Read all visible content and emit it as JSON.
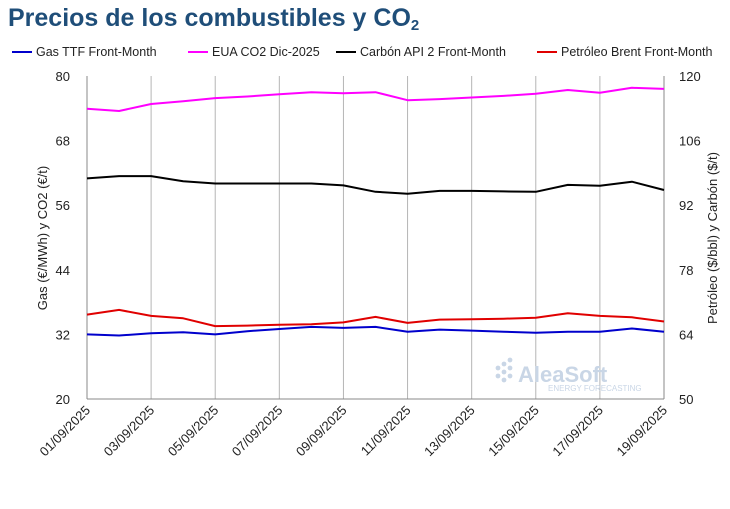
{
  "title_main": "Precios de los combustibles y CO",
  "title_sub": "2",
  "watermark": {
    "brand": "AleaSoft",
    "tagline": "ENERGY FORECASTING"
  },
  "colors": {
    "gas": "#0000cc",
    "eua": "#ff00ff",
    "coal": "#000000",
    "brent": "#e00000",
    "grid": "#b5b5b5"
  },
  "chart_data": {
    "type": "line",
    "x": [
      "01/09/2025",
      "02/09/2025",
      "03/09/2025",
      "04/09/2025",
      "05/09/2025",
      "06/09/2025",
      "07/09/2025",
      "08/09/2025",
      "09/09/2025",
      "10/09/2025",
      "11/09/2025",
      "12/09/2025",
      "13/09/2025",
      "14/09/2025",
      "15/09/2025",
      "16/09/2025",
      "17/09/2025",
      "18/09/2025",
      "19/09/2025"
    ],
    "x_tick_labels": [
      "01/09/2025",
      "03/09/2025",
      "05/09/2025",
      "07/09/2025",
      "09/09/2025",
      "11/09/2025",
      "13/09/2025",
      "15/09/2025",
      "17/09/2025",
      "19/09/2025"
    ],
    "y_left": {
      "label": "Gas (€/MWh) y CO2 (€/t)",
      "min": 20,
      "max": 80,
      "ticks": [
        20,
        32,
        44,
        56,
        68,
        80
      ]
    },
    "y_right": {
      "label": "Petróleo ($/bbl) y Carbón ($/t)",
      "min": 50,
      "max": 120,
      "ticks": [
        50,
        64,
        78,
        92,
        106,
        120
      ]
    },
    "legend_position": "top",
    "grid": "vertical",
    "series": [
      {
        "name": "Gas TTF Front-Month",
        "axis": "left",
        "color": "#0000cc",
        "values": [
          32.0,
          31.8,
          32.2,
          32.4,
          32.0,
          32.6,
          33.0,
          33.4,
          33.2,
          33.4,
          32.5,
          32.9,
          32.7,
          32.5,
          32.3,
          32.5,
          32.5,
          33.1,
          32.5
        ]
      },
      {
        "name": "EUA CO2 Dic-2025",
        "axis": "left",
        "color": "#ff00ff",
        "values": [
          73.9,
          73.5,
          74.8,
          75.3,
          75.9,
          76.2,
          76.6,
          77.0,
          76.8,
          77.0,
          75.5,
          75.7,
          76.0,
          76.3,
          76.7,
          77.4,
          76.9,
          77.8,
          77.6
        ]
      },
      {
        "name": "Carbón API 2 Front-Month",
        "axis": "right",
        "color": "#000000",
        "values": [
          97.8,
          98.3,
          98.3,
          97.2,
          96.7,
          96.7,
          96.7,
          96.7,
          96.3,
          94.9,
          94.5,
          95.1,
          95.1,
          95.0,
          94.9,
          96.4,
          96.2,
          97.1,
          95.3
        ]
      },
      {
        "name": "Petróleo Brent Front-Month",
        "axis": "right",
        "color": "#e00000",
        "values": [
          68.3,
          69.3,
          68.0,
          67.5,
          65.8,
          65.9,
          66.1,
          66.2,
          66.6,
          67.8,
          66.5,
          67.2,
          67.3,
          67.4,
          67.6,
          68.6,
          68.0,
          67.7,
          66.8
        ]
      }
    ]
  }
}
